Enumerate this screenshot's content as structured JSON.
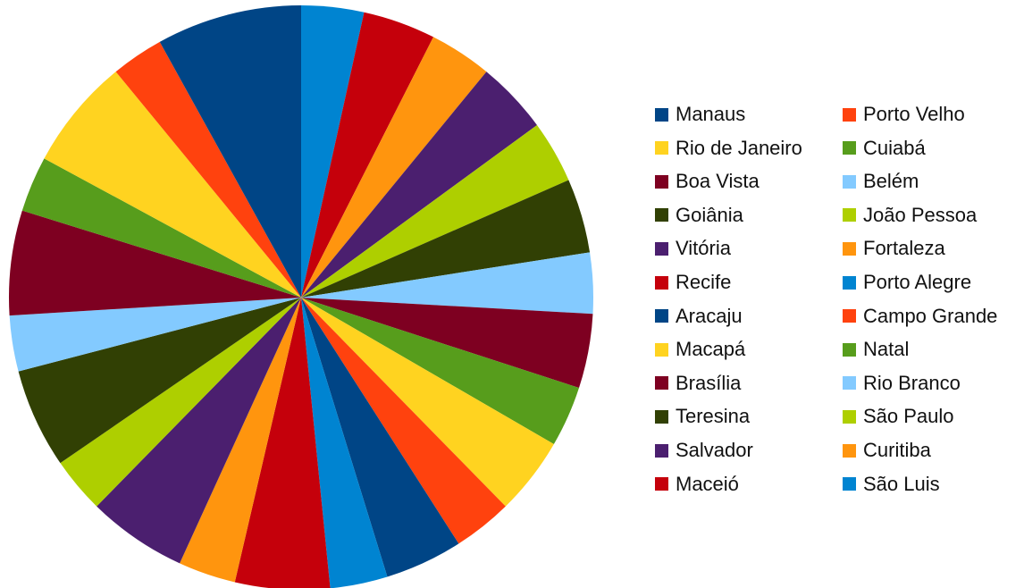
{
  "chart_data": {
    "type": "pie",
    "title": "",
    "categories": [
      "Manaus",
      "Rio de Janeiro",
      "Boa Vista",
      "Goiânia",
      "Vitória",
      "Recife",
      "Aracaju",
      "Macapá",
      "Brasília",
      "Teresina",
      "Salvador",
      "Maceió",
      "Porto Velho",
      "Cuiabá",
      "Belém",
      "João Pessoa",
      "Fortaleza",
      "Porto Alegre",
      "Campo Grande",
      "Natal",
      "Rio Branco",
      "São Paulo",
      "Curitiba",
      "São Luis"
    ],
    "values": [
      8.6,
      6.6,
      6.2,
      5.9,
      5.9,
      5.6,
      4.6,
      4.6,
      4.4,
      4.4,
      4.3,
      4.3,
      3.1,
      3.3,
      3.3,
      3.3,
      3.4,
      3.4,
      3.5,
      3.6,
      3.6,
      3.7,
      3.7,
      3.7
    ],
    "slice_order": [
      "São Luis",
      "Maceió",
      "Curitiba",
      "Salvador",
      "São Paulo",
      "Teresina",
      "Rio Branco",
      "Brasília",
      "Natal",
      "Macapá",
      "Campo Grande",
      "Aracaju",
      "Porto Alegre",
      "Recife",
      "Fortaleza",
      "Vitória",
      "João Pessoa",
      "Goiânia",
      "Belém",
      "Boa Vista",
      "Cuiabá",
      "Rio de Janeiro",
      "Porto Velho",
      "Manaus"
    ],
    "colors": [
      "#004586",
      "#ffd320",
      "#7e0021",
      "#314004",
      "#4b1f6f",
      "#c5000b",
      "#004586",
      "#ffd320",
      "#7e0021",
      "#314004",
      "#4b1f6f",
      "#c5000b",
      "#ff420e",
      "#579d1c",
      "#83caff",
      "#aecf00",
      "#ff950e",
      "#0084d1",
      "#ff420e",
      "#579d1c",
      "#83caff",
      "#aecf00",
      "#ff950e",
      "#0084d1"
    ],
    "legend": {
      "position": "right",
      "columns": 2
    }
  }
}
